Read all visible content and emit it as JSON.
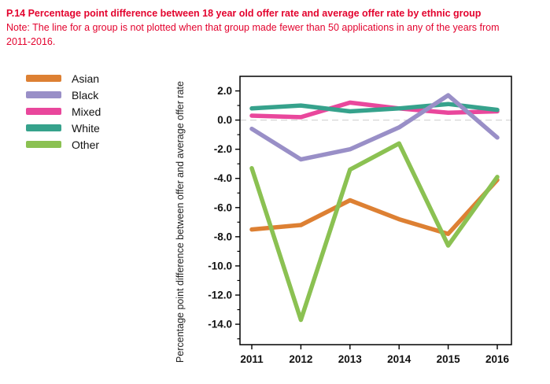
{
  "header": {
    "title": "P.14 Percentage point difference between 18 year old offer rate and average offer rate by ethnic group",
    "note": "Note: The line for a group is not plotted when that group made fewer than 50 applications in any of the years from\n2011-2016."
  },
  "colors": {
    "title_red": "#e3032e",
    "axis": "#000000",
    "zero_line": "#d6d6d6",
    "tick_text": "#111111"
  },
  "chart_data": {
    "type": "line",
    "x": [
      2011,
      2012,
      2013,
      2014,
      2015,
      2016
    ],
    "series": [
      {
        "name": "Asian",
        "color": "#dd8033",
        "values": [
          -7.5,
          -7.2,
          -5.5,
          -6.8,
          -7.8,
          -4.1
        ]
      },
      {
        "name": "Black",
        "color": "#998fc7",
        "values": [
          -0.6,
          -2.7,
          -2.0,
          -0.5,
          1.7,
          -1.2
        ]
      },
      {
        "name": "Mixed",
        "color": "#e9479c",
        "values": [
          0.3,
          0.2,
          1.2,
          0.8,
          0.5,
          0.6
        ]
      },
      {
        "name": "White",
        "color": "#36a28c",
        "values": [
          0.8,
          1.0,
          0.6,
          0.8,
          1.1,
          0.7
        ]
      },
      {
        "name": "Other",
        "color": "#8bc152",
        "values": [
          -3.3,
          -13.7,
          -3.4,
          -1.6,
          -8.6,
          -3.9
        ]
      }
    ],
    "title": "",
    "xlabel": "",
    "ylabel": "Percentage point difference between offer and average offer rate",
    "ylim": [
      -15.4,
      3.0
    ],
    "yticks": [
      2,
      0,
      -2,
      -4,
      -6,
      -8,
      -10,
      -12,
      -14
    ],
    "ytick_minor": [
      1,
      -1,
      -3,
      -5,
      -7,
      -9,
      -11,
      -13,
      -15
    ],
    "zero_line_dashed": true,
    "grid": false,
    "legend_position": "outside-top-left",
    "draw_order": [
      "Asian",
      "Mixed",
      "White",
      "Other",
      "Black"
    ]
  }
}
